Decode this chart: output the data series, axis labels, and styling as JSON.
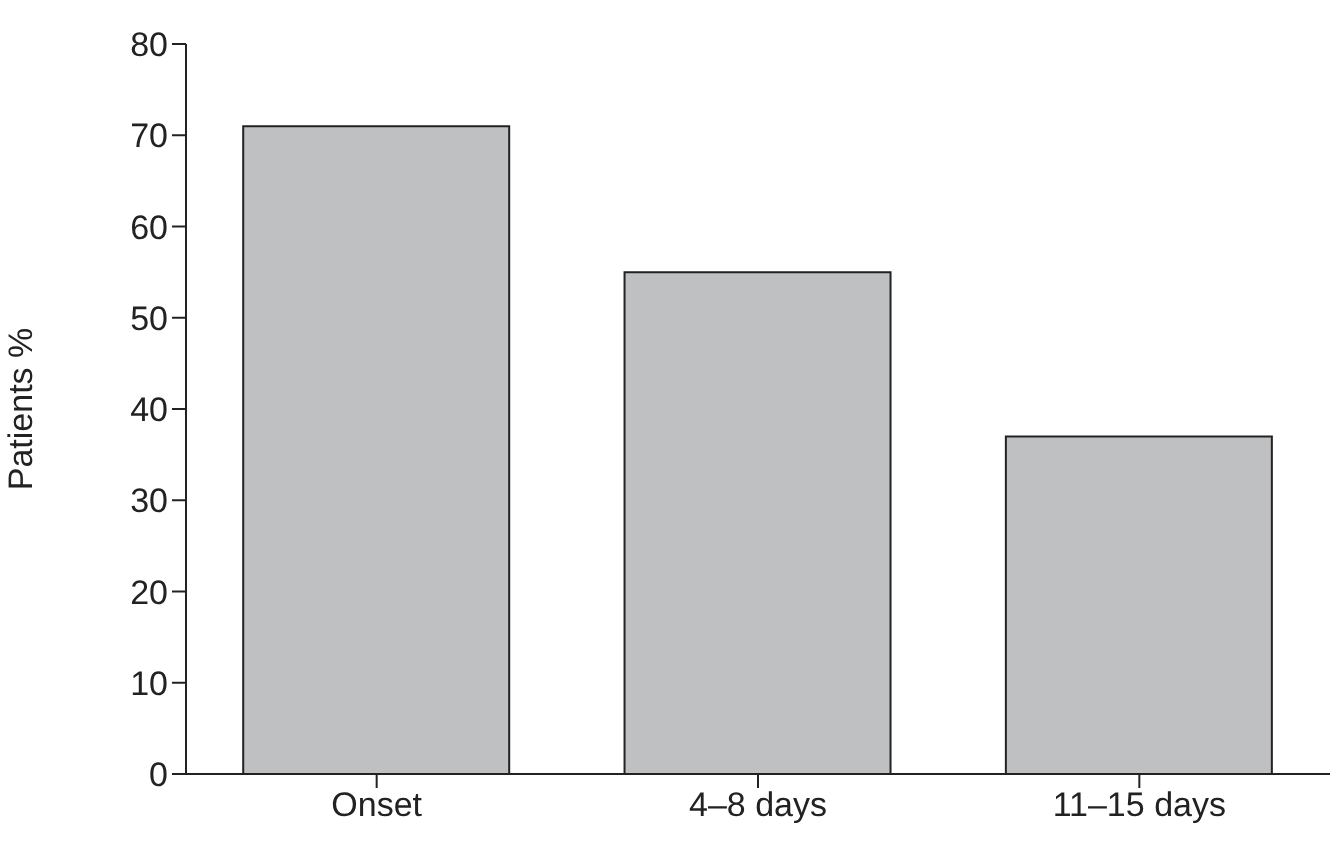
{
  "chart_data": {
    "type": "bar",
    "ylabel": "Patients %",
    "categories": [
      "Onset",
      "4–8 days",
      "11–15 days"
    ],
    "values": [
      71,
      55,
      37
    ],
    "color": "#bfc0c2",
    "ylim": [
      0,
      80
    ],
    "yticks": [
      0,
      10,
      20,
      30,
      40,
      50,
      60,
      70,
      80
    ],
    "grid": false,
    "legend": false
  }
}
